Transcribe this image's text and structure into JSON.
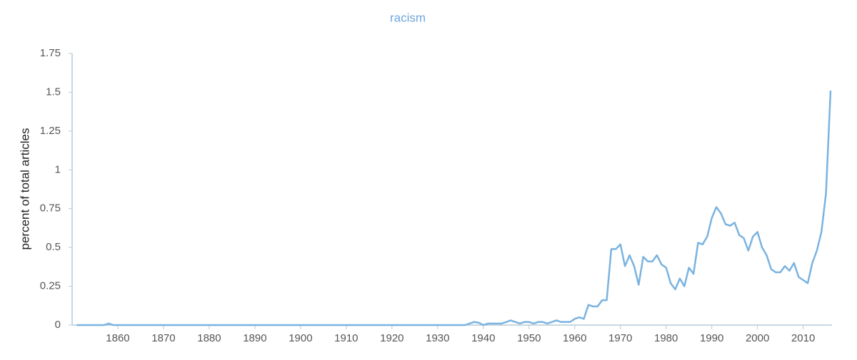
{
  "chart_data": {
    "type": "line",
    "title": "racism",
    "y_label": "percent of total articles",
    "x": [
      1851,
      1852,
      1853,
      1854,
      1855,
      1856,
      1857,
      1858,
      1859,
      1860,
      1861,
      1862,
      1863,
      1864,
      1865,
      1866,
      1867,
      1868,
      1869,
      1870,
      1871,
      1872,
      1873,
      1874,
      1875,
      1876,
      1877,
      1878,
      1879,
      1880,
      1881,
      1882,
      1883,
      1884,
      1885,
      1886,
      1887,
      1888,
      1889,
      1890,
      1891,
      1892,
      1893,
      1894,
      1895,
      1896,
      1897,
      1898,
      1899,
      1900,
      1901,
      1902,
      1903,
      1904,
      1905,
      1906,
      1907,
      1908,
      1909,
      1910,
      1911,
      1912,
      1913,
      1914,
      1915,
      1916,
      1917,
      1918,
      1919,
      1920,
      1921,
      1922,
      1923,
      1924,
      1925,
      1926,
      1927,
      1928,
      1929,
      1930,
      1931,
      1932,
      1933,
      1934,
      1935,
      1936,
      1937,
      1938,
      1939,
      1940,
      1941,
      1942,
      1943,
      1944,
      1945,
      1946,
      1947,
      1948,
      1949,
      1950,
      1951,
      1952,
      1953,
      1954,
      1955,
      1956,
      1957,
      1958,
      1959,
      1960,
      1961,
      1962,
      1963,
      1964,
      1965,
      1966,
      1967,
      1968,
      1969,
      1970,
      1971,
      1972,
      1973,
      1974,
      1975,
      1976,
      1977,
      1978,
      1979,
      1980,
      1981,
      1982,
      1983,
      1984,
      1985,
      1986,
      1987,
      1988,
      1989,
      1990,
      1991,
      1992,
      1993,
      1994,
      1995,
      1996,
      1997,
      1998,
      1999,
      2000,
      2001,
      2002,
      2003,
      2004,
      2005,
      2006,
      2007,
      2008,
      2009,
      2010,
      2011,
      2012,
      2013,
      2014,
      2015,
      2016
    ],
    "series": [
      {
        "name": "racism",
        "color": "#7ab3e0",
        "values": [
          0,
          0,
          0,
          0,
          0,
          0,
          0,
          0.01,
          0,
          0,
          0,
          0,
          0,
          0,
          0,
          0,
          0,
          0,
          0,
          0,
          0,
          0,
          0,
          0,
          0,
          0,
          0,
          0,
          0,
          0,
          0,
          0,
          0,
          0,
          0,
          0,
          0,
          0,
          0,
          0,
          0,
          0,
          0,
          0,
          0,
          0,
          0,
          0,
          0,
          0,
          0,
          0,
          0,
          0,
          0,
          0,
          0,
          0,
          0,
          0,
          0,
          0,
          0,
          0,
          0,
          0,
          0,
          0,
          0,
          0,
          0,
          0,
          0,
          0,
          0,
          0,
          0,
          0,
          0,
          0,
          0,
          0,
          0,
          0,
          0,
          0,
          0.01,
          0.02,
          0.015,
          0,
          0.01,
          0.01,
          0.01,
          0.01,
          0.02,
          0.03,
          0.02,
          0.01,
          0.02,
          0.02,
          0.01,
          0.02,
          0.02,
          0.01,
          0.02,
          0.03,
          0.02,
          0.02,
          0.02,
          0.04,
          0.05,
          0.04,
          0.13,
          0.12,
          0.12,
          0.16,
          0.16,
          0.49,
          0.49,
          0.52,
          0.38,
          0.45,
          0.38,
          0.26,
          0.44,
          0.41,
          0.41,
          0.45,
          0.39,
          0.37,
          0.27,
          0.23,
          0.3,
          0.25,
          0.37,
          0.33,
          0.53,
          0.52,
          0.57,
          0.69,
          0.76,
          0.72,
          0.65,
          0.64,
          0.66,
          0.58,
          0.56,
          0.48,
          0.57,
          0.6,
          0.5,
          0.45,
          0.36,
          0.34,
          0.34,
          0.38,
          0.35,
          0.4,
          0.31,
          0.29,
          0.27,
          0.4,
          0.48,
          0.6,
          0.85,
          1.51
        ]
      }
    ],
    "xlim": [
      1850,
      2016
    ],
    "xticks": [
      1860,
      1870,
      1880,
      1890,
      1900,
      1910,
      1920,
      1930,
      1940,
      1950,
      1960,
      1970,
      1980,
      1990,
      2000,
      2010
    ],
    "ylim": [
      0,
      1.75
    ],
    "yticks": [
      0,
      0.25,
      0.5,
      0.75,
      1,
      1.25,
      1.5,
      1.75
    ]
  }
}
